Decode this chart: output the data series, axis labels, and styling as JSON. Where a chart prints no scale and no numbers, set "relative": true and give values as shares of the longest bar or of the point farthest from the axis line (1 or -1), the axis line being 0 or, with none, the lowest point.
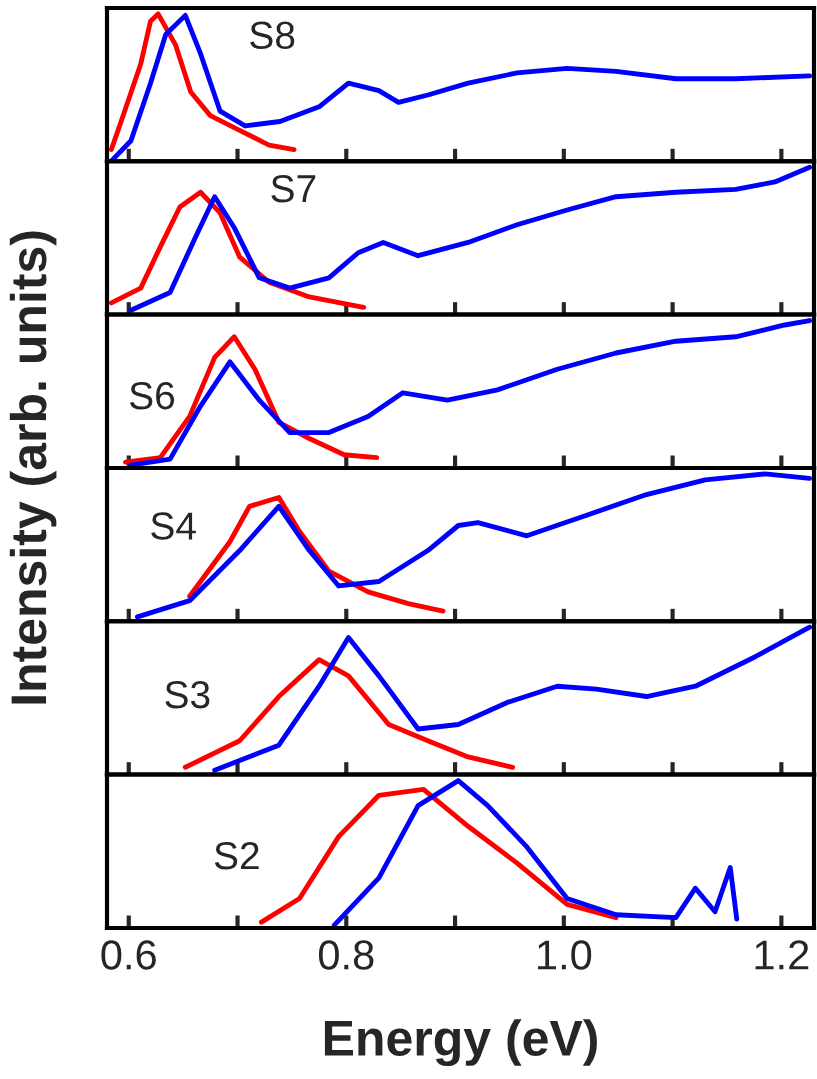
{
  "chart_data": [
    {
      "type": "line",
      "relative": true,
      "annotations": [
        "S8"
      ],
      "ylabel": "Intensity (arb. units)",
      "xlim": [
        0.58,
        1.23
      ],
      "xticks": [
        {
          "value": 0.6,
          "label": null
        },
        {
          "value": 0.7,
          "label": null
        },
        {
          "value": 0.8,
          "label": null
        },
        {
          "value": 0.9,
          "label": null
        },
        {
          "value": 1.0,
          "label": null
        },
        {
          "value": 1.1,
          "label": null
        },
        {
          "value": 1.2,
          "label": null
        }
      ],
      "tick_labels": false,
      "grid": false,
      "legend": false,
      "series": [
        {
          "color": "#ff0000",
          "x": [
            0.584,
            0.593,
            0.611,
            0.62,
            0.627,
            0.643,
            0.657,
            0.675,
            0.702,
            0.729,
            0.752
          ],
          "values": [
            0.08,
            0.27,
            0.66,
            0.95,
            1.0,
            0.79,
            0.47,
            0.31,
            0.21,
            0.11,
            0.08
          ]
        },
        {
          "color": "#0000ff",
          "x": [
            0.585,
            0.602,
            0.62,
            0.634,
            0.652,
            0.666,
            0.684,
            0.707,
            0.739,
            0.775,
            0.802,
            0.83,
            0.848,
            0.875,
            0.912,
            0.957,
            1.003,
            1.048,
            1.103,
            1.158,
            1.226
          ],
          "values": [
            0.01,
            0.14,
            0.53,
            0.86,
            0.99,
            0.73,
            0.34,
            0.24,
            0.27,
            0.37,
            0.53,
            0.48,
            0.4,
            0.45,
            0.53,
            0.6,
            0.63,
            0.61,
            0.56,
            0.56,
            0.58
          ]
        }
      ]
    },
    {
      "type": "line",
      "relative": true,
      "annotations": [
        "S7"
      ],
      "xlim": [
        0.58,
        1.23
      ],
      "xticks": [
        {
          "value": 0.6,
          "label": null
        },
        {
          "value": 0.7,
          "label": null
        },
        {
          "value": 0.8,
          "label": null
        },
        {
          "value": 0.9,
          "label": null
        },
        {
          "value": 1.0,
          "label": null
        },
        {
          "value": 1.1,
          "label": null
        },
        {
          "value": 1.2,
          "label": null
        }
      ],
      "tick_labels": false,
      "grid": false,
      "legend": false,
      "series": [
        {
          "color": "#ff0000",
          "x": [
            0.584,
            0.611,
            0.629,
            0.647,
            0.666,
            0.684,
            0.702,
            0.729,
            0.766,
            0.816
          ],
          "values": [
            0.08,
            0.18,
            0.46,
            0.73,
            0.83,
            0.69,
            0.39,
            0.22,
            0.12,
            0.05
          ]
        },
        {
          "color": "#0000ff",
          "x": [
            0.602,
            0.638,
            0.661,
            0.679,
            0.697,
            0.72,
            0.748,
            0.784,
            0.811,
            0.834,
            0.866,
            0.912,
            0.957,
            1.003,
            1.048,
            1.103,
            1.158,
            1.194,
            1.226
          ],
          "values": [
            0.03,
            0.15,
            0.52,
            0.8,
            0.59,
            0.25,
            0.18,
            0.25,
            0.42,
            0.49,
            0.4,
            0.49,
            0.61,
            0.71,
            0.8,
            0.83,
            0.85,
            0.9,
            1.0
          ]
        }
      ]
    },
    {
      "type": "line",
      "relative": true,
      "annotations": [
        "S6"
      ],
      "xlim": [
        0.58,
        1.23
      ],
      "xticks": [
        {
          "value": 0.6,
          "label": null
        },
        {
          "value": 0.7,
          "label": null
        },
        {
          "value": 0.8,
          "label": null
        },
        {
          "value": 0.9,
          "label": null
        },
        {
          "value": 1.0,
          "label": null
        },
        {
          "value": 1.1,
          "label": null
        },
        {
          "value": 1.2,
          "label": null
        }
      ],
      "tick_labels": false,
      "grid": false,
      "legend": false,
      "series": [
        {
          "color": "#ff0000",
          "x": [
            0.597,
            0.629,
            0.656,
            0.679,
            0.697,
            0.716,
            0.738,
            0.766,
            0.798,
            0.828
          ],
          "values": [
            0.04,
            0.07,
            0.35,
            0.75,
            0.89,
            0.67,
            0.31,
            0.2,
            0.09,
            0.07
          ]
        },
        {
          "color": "#0000ff",
          "x": [
            0.602,
            0.638,
            0.666,
            0.693,
            0.72,
            0.748,
            0.784,
            0.82,
            0.852,
            0.893,
            0.939,
            0.994,
            1.048,
            1.103,
            1.158,
            1.203,
            1.226
          ],
          "values": [
            0.02,
            0.06,
            0.42,
            0.72,
            0.46,
            0.24,
            0.24,
            0.35,
            0.51,
            0.46,
            0.53,
            0.67,
            0.78,
            0.86,
            0.89,
            0.97,
            1.0
          ]
        }
      ]
    },
    {
      "type": "line",
      "relative": true,
      "annotations": [
        "S4"
      ],
      "xlim": [
        0.58,
        1.23
      ],
      "xticks": [
        {
          "value": 0.6,
          "label": null
        },
        {
          "value": 0.7,
          "label": null
        },
        {
          "value": 0.8,
          "label": null
        },
        {
          "value": 0.9,
          "label": null
        },
        {
          "value": 1.0,
          "label": null
        },
        {
          "value": 1.1,
          "label": null
        },
        {
          "value": 1.2,
          "label": null
        }
      ],
      "tick_labels": false,
      "grid": false,
      "legend": false,
      "series": [
        {
          "color": "#ff0000",
          "x": [
            0.656,
            0.693,
            0.711,
            0.738,
            0.757,
            0.784,
            0.82,
            0.857,
            0.889
          ],
          "values": [
            0.17,
            0.54,
            0.78,
            0.84,
            0.61,
            0.34,
            0.2,
            0.12,
            0.07
          ]
        },
        {
          "color": "#0000ff",
          "x": [
            0.608,
            0.656,
            0.702,
            0.738,
            0.766,
            0.793,
            0.83,
            0.875,
            0.903,
            0.921,
            0.966,
            1.021,
            1.076,
            1.13,
            1.185,
            1.226
          ],
          "values": [
            0.03,
            0.14,
            0.48,
            0.78,
            0.48,
            0.24,
            0.27,
            0.48,
            0.65,
            0.67,
            0.58,
            0.72,
            0.86,
            0.96,
            1.0,
            0.97
          ]
        }
      ]
    },
    {
      "type": "line",
      "relative": true,
      "annotations": [
        "S3"
      ],
      "xlim": [
        0.58,
        1.23
      ],
      "xticks": [
        {
          "value": 0.6,
          "label": null
        },
        {
          "value": 0.7,
          "label": null
        },
        {
          "value": 0.8,
          "label": null
        },
        {
          "value": 0.9,
          "label": null
        },
        {
          "value": 1.0,
          "label": null
        },
        {
          "value": 1.1,
          "label": null
        },
        {
          "value": 1.2,
          "label": null
        }
      ],
      "tick_labels": false,
      "grid": false,
      "legend": false,
      "series": [
        {
          "color": "#ff0000",
          "x": [
            0.652,
            0.702,
            0.738,
            0.775,
            0.802,
            0.839,
            0.875,
            0.912,
            0.953
          ],
          "values": [
            0.05,
            0.23,
            0.53,
            0.78,
            0.67,
            0.34,
            0.23,
            0.12,
            0.05
          ]
        },
        {
          "color": "#0000ff",
          "x": [
            0.679,
            0.738,
            0.775,
            0.802,
            0.83,
            0.866,
            0.903,
            0.948,
            0.994,
            1.03,
            1.076,
            1.121,
            1.176,
            1.226
          ],
          "values": [
            0.03,
            0.2,
            0.6,
            0.93,
            0.67,
            0.31,
            0.34,
            0.49,
            0.6,
            0.58,
            0.53,
            0.6,
            0.8,
            1.0
          ]
        }
      ]
    },
    {
      "type": "line",
      "relative": true,
      "annotations": [
        "S2"
      ],
      "xlabel": "Energy (eV)",
      "xlim": [
        0.58,
        1.23
      ],
      "xticks": [
        0.6,
        {
          "value": 0.7,
          "label": null
        },
        0.8,
        {
          "value": 0.9,
          "label": null
        },
        {
          "value": 1.0,
          "label": "1.0"
        },
        {
          "value": 1.1,
          "label": null
        },
        1.2
      ],
      "tick_labels": "x",
      "grid": false,
      "legend": false,
      "series": [
        {
          "color": "#ff0000",
          "x": [
            0.722,
            0.757,
            0.793,
            0.83,
            0.871,
            0.912,
            0.957,
            1.003,
            1.048
          ],
          "values": [
            0.04,
            0.2,
            0.62,
            0.9,
            0.94,
            0.69,
            0.44,
            0.16,
            0.07
          ]
        },
        {
          "color": "#0000ff",
          "x": [
            0.789,
            0.83,
            0.866,
            0.903,
            0.93,
            0.966,
            1.003,
            1.048,
            1.103,
            1.121,
            1.139,
            1.153,
            1.159
          ],
          "values": [
            0.02,
            0.34,
            0.83,
            1.0,
            0.83,
            0.55,
            0.2,
            0.09,
            0.07,
            0.27,
            0.11,
            0.41,
            0.06
          ]
        }
      ]
    }
  ]
}
